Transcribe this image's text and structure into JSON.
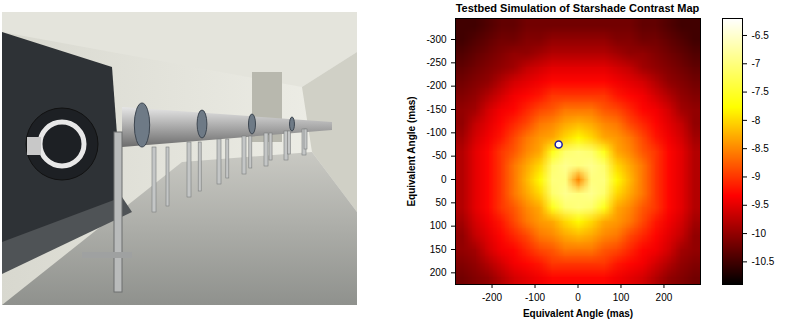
{
  "chart_data": {
    "type": "heatmap",
    "title": "Testbed Simulation of Starshade Contrast Map",
    "xlabel": "Equivalent Angle (mas)",
    "ylabel": "Equivalent Angle (mas)",
    "x": [
      -270,
      -240,
      -210,
      -180,
      -150,
      -120,
      -90,
      -60,
      -30,
      0,
      30,
      60,
      90,
      120,
      150,
      180,
      210,
      240,
      270
    ],
    "y": [
      -330,
      -300,
      -270,
      -240,
      -210,
      -180,
      -150,
      -120,
      -90,
      -60,
      -30,
      0,
      30,
      60,
      90,
      120,
      150,
      180,
      210
    ],
    "z": [
      [
        -10.5,
        -10.5,
        -10.4,
        -10.3,
        -10.3,
        -10.2,
        -10.2,
        -10.2,
        -10.2,
        -10.2,
        -10.2,
        -10.2,
        -10.2,
        -10.2,
        -10.3,
        -10.3,
        -10.4,
        -10.5,
        -10.5
      ],
      [
        -10.5,
        -10.4,
        -10.3,
        -10.2,
        -10.2,
        -10.1,
        -10.1,
        -10.0,
        -10.0,
        -10.0,
        -10.0,
        -10.0,
        -10.1,
        -10.1,
        -10.2,
        -10.2,
        -10.3,
        -10.4,
        -10.5
      ],
      [
        -10.4,
        -10.3,
        -10.2,
        -10.1,
        -10.0,
        -10.0,
        -9.9,
        -9.8,
        -9.8,
        -9.8,
        -9.8,
        -9.8,
        -9.9,
        -10.0,
        -10.0,
        -10.1,
        -10.2,
        -10.3,
        -10.4
      ],
      [
        -10.3,
        -10.2,
        -10.1,
        -10.0,
        -9.9,
        -9.7,
        -9.6,
        -9.5,
        -9.5,
        -9.5,
        -9.5,
        -9.5,
        -9.6,
        -9.7,
        -9.9,
        -10.0,
        -10.1,
        -10.2,
        -10.3
      ],
      [
        -10.2,
        -10.1,
        -10.0,
        -9.8,
        -9.6,
        -9.5,
        -9.4,
        -9.3,
        -9.3,
        -9.3,
        -9.3,
        -9.3,
        -9.4,
        -9.5,
        -9.6,
        -9.8,
        -10.0,
        -10.1,
        -10.2
      ],
      [
        -10.1,
        -10.0,
        -9.8,
        -9.6,
        -9.4,
        -9.3,
        -9.2,
        -9.0,
        -9.0,
        -9.0,
        -9.0,
        -9.0,
        -9.2,
        -9.3,
        -9.4,
        -9.6,
        -9.8,
        -10.0,
        -10.1
      ],
      [
        -10.0,
        -9.9,
        -9.6,
        -9.4,
        -9.3,
        -9.1,
        -8.9,
        -8.8,
        -8.6,
        -8.6,
        -8.6,
        -8.8,
        -8.9,
        -9.1,
        -9.3,
        -9.4,
        -9.6,
        -9.9,
        -10.0
      ],
      [
        -10.0,
        -9.7,
        -9.5,
        -9.3,
        -9.1,
        -8.9,
        -8.6,
        -8.5,
        -8.3,
        -8.2,
        -8.3,
        -8.5,
        -8.6,
        -8.9,
        -9.1,
        -9.3,
        -9.5,
        -9.7,
        -10.0
      ],
      [
        -9.9,
        -9.6,
        -9.4,
        -9.2,
        -8.9,
        -8.6,
        -8.4,
        -8.3,
        -8.0,
        -7.8,
        -8.0,
        -8.3,
        -8.4,
        -8.6,
        -8.9,
        -9.2,
        -9.4,
        -9.6,
        -9.9
      ],
      [
        -9.8,
        -9.5,
        -9.3,
        -9.0,
        -8.8,
        -8.5,
        -8.3,
        -7.6,
        -7.1,
        -7.0,
        -7.1,
        -7.6,
        -8.3,
        -8.5,
        -8.8,
        -9.0,
        -9.3,
        -9.5,
        -9.8
      ],
      [
        -9.8,
        -9.5,
        -9.3,
        -9.0,
        -8.6,
        -8.3,
        -8.0,
        -7.1,
        -6.9,
        -7.0,
        -6.9,
        -7.1,
        -8.0,
        -8.3,
        -8.6,
        -9.0,
        -9.3,
        -9.5,
        -9.8
      ],
      [
        -9.8,
        -9.5,
        -9.3,
        -9.0,
        -8.6,
        -8.2,
        -7.8,
        -7.0,
        -7.0,
        -8.5,
        -7.0,
        -7.0,
        -7.8,
        -8.2,
        -8.6,
        -9.0,
        -9.3,
        -9.5,
        -9.8
      ],
      [
        -9.8,
        -9.5,
        -9.3,
        -9.0,
        -8.6,
        -8.3,
        -8.0,
        -7.1,
        -6.9,
        -7.0,
        -6.9,
        -7.1,
        -8.0,
        -8.3,
        -8.6,
        -9.0,
        -9.3,
        -9.5,
        -9.8
      ],
      [
        -9.8,
        -9.5,
        -9.3,
        -9.0,
        -8.8,
        -8.5,
        -8.3,
        -7.6,
        -7.1,
        -7.0,
        -7.1,
        -7.6,
        -8.3,
        -8.5,
        -8.8,
        -9.0,
        -9.3,
        -9.5,
        -9.8
      ],
      [
        -9.9,
        -9.6,
        -9.4,
        -9.2,
        -8.9,
        -8.6,
        -8.4,
        -8.3,
        -8.0,
        -7.8,
        -8.0,
        -8.3,
        -8.4,
        -8.6,
        -8.9,
        -9.2,
        -9.4,
        -9.6,
        -9.9
      ],
      [
        -10.0,
        -9.7,
        -9.5,
        -9.3,
        -9.1,
        -8.9,
        -8.6,
        -8.5,
        -8.3,
        -8.2,
        -8.3,
        -8.5,
        -8.6,
        -8.9,
        -9.1,
        -9.3,
        -9.5,
        -9.7,
        -10.0
      ],
      [
        -10.0,
        -9.9,
        -9.6,
        -9.4,
        -9.3,
        -9.1,
        -8.9,
        -8.8,
        -8.6,
        -8.6,
        -8.6,
        -8.8,
        -8.9,
        -9.1,
        -9.3,
        -9.4,
        -9.6,
        -9.9,
        -10.0
      ],
      [
        -10.1,
        -10.0,
        -9.8,
        -9.6,
        -9.4,
        -9.3,
        -9.2,
        -9.0,
        -9.0,
        -9.0,
        -9.0,
        -9.0,
        -9.2,
        -9.3,
        -9.4,
        -9.6,
        -9.8,
        -10.0,
        -10.1
      ],
      [
        -10.2,
        -10.1,
        -10.0,
        -9.8,
        -9.6,
        -9.5,
        -9.4,
        -9.3,
        -9.3,
        -9.3,
        -9.3,
        -9.3,
        -9.4,
        -9.5,
        -9.6,
        -9.8,
        -10.0,
        -10.1,
        -10.2
      ]
    ],
    "xlim": [
      -285,
      285
    ],
    "ylim": [
      225,
      -345
    ],
    "xticks": [
      -200,
      -100,
      0,
      100,
      200
    ],
    "yticks": [
      -300,
      -250,
      -200,
      -150,
      -100,
      -50,
      0,
      50,
      100,
      150,
      200
    ],
    "colorbar": {
      "range": [
        -10.9,
        -6.2
      ],
      "ticks": [
        -6.5,
        -7,
        -7.5,
        -8,
        -8.5,
        -9,
        -9.5,
        -10,
        -10.5
      ]
    },
    "highlight": {
      "x": -45,
      "y": -75,
      "color": "#1c1ca8"
    }
  }
}
